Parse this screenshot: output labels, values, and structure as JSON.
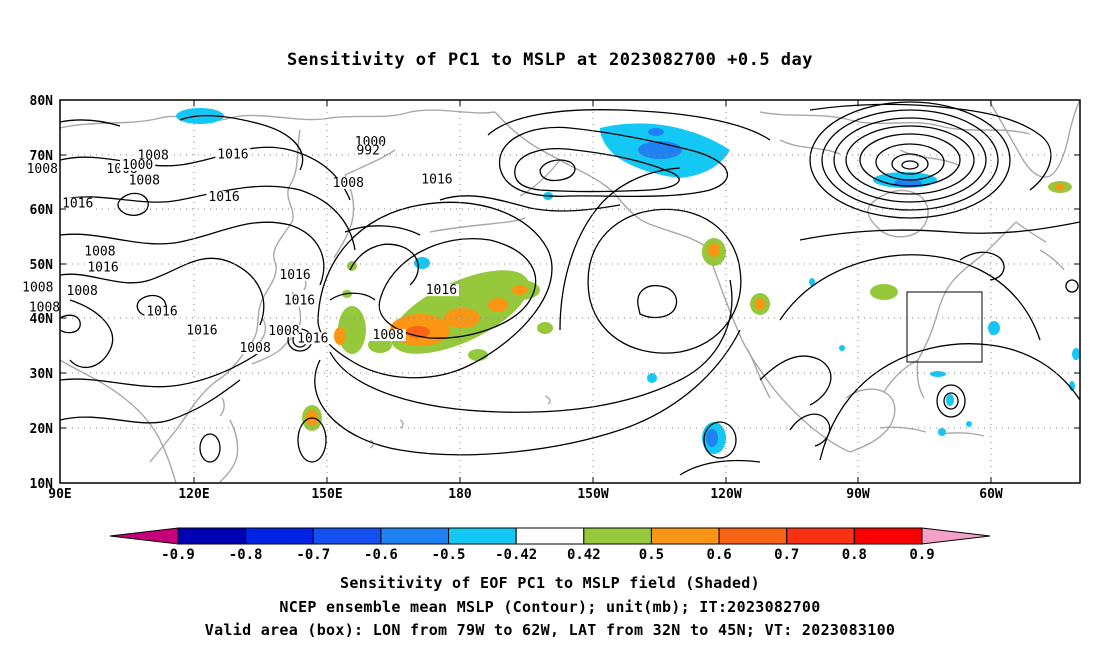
{
  "title": "Sensitivity of PC1 to MSLP at 2023082700 +0.5 day",
  "map": {
    "lat_labels": [
      "80N",
      "70N",
      "60N",
      "50N",
      "40N",
      "30N",
      "20N",
      "10N"
    ],
    "lon_labels": [
      "90E",
      "120E",
      "150E",
      "180",
      "150W",
      "120W",
      "90W",
      "60W"
    ],
    "contour_labels": [
      {
        "text": "1016",
        "lon": 129,
        "lat": 69.5,
        "fs": 13
      },
      {
        "text": "1008",
        "lon": 86,
        "lat": 66.8,
        "fs": 13
      },
      {
        "text": "1008",
        "lon": 104,
        "lat": 66.8,
        "fs": 13
      },
      {
        "text": "1016",
        "lon": 94,
        "lat": 60.5,
        "fs": 13
      },
      {
        "text": "1008",
        "lon": 111,
        "lat": 69.3,
        "fs": 13
      },
      {
        "text": "1000",
        "lon": 107.5,
        "lat": 67.6,
        "fs": 13
      },
      {
        "text": "1008",
        "lon": 109,
        "lat": 64.7,
        "fs": 13
      },
      {
        "text": "1016",
        "lon": 127,
        "lat": 61.7,
        "fs": 13
      },
      {
        "text": "1000",
        "lon": 160,
        "lat": 71.8,
        "fs": 13
      },
      {
        "text": "992",
        "lon": 159.5,
        "lat": 70.2,
        "fs": 13
      },
      {
        "text": "1008",
        "lon": 155,
        "lat": 64.3,
        "fs": 13
      },
      {
        "text": "1016",
        "lon": 175,
        "lat": 64.9,
        "fs": 13
      },
      {
        "text": "1008",
        "lon": 99,
        "lat": 51.8,
        "fs": 13
      },
      {
        "text": "1016",
        "lon": 99.7,
        "lat": 48.8,
        "fs": 13
      },
      {
        "text": "1008",
        "lon": 85,
        "lat": 45.2,
        "fs": 13
      },
      {
        "text": "1008",
        "lon": 95,
        "lat": 44.5,
        "fs": 13
      },
      {
        "text": "1008",
        "lon": 86.5,
        "lat": 41.5,
        "fs": 13
      },
      {
        "text": "1016",
        "lon": 113,
        "lat": 40.8,
        "fs": 13
      },
      {
        "text": "1016",
        "lon": 143,
        "lat": 47.5,
        "fs": 13
      },
      {
        "text": "1016",
        "lon": 144,
        "lat": 42.8,
        "fs": 13
      },
      {
        "text": "1016",
        "lon": 176,
        "lat": 44.7,
        "fs": 13
      },
      {
        "text": "1016",
        "lon": 122,
        "lat": 37.3,
        "fs": 13
      },
      {
        "text": "1008",
        "lon": 140.5,
        "lat": 37.2,
        "fs": 13
      },
      {
        "text": "1016",
        "lon": 147,
        "lat": 35.9,
        "fs": 13
      },
      {
        "text": "1008",
        "lon": 164,
        "lat": 36.5,
        "fs": 13
      },
      {
        "text": "1008",
        "lon": 134,
        "lat": 34.1,
        "fs": 13
      }
    ],
    "valid_box": {
      "lon_from": "79W",
      "lon_to": "62W",
      "lat_from": "32N",
      "lat_to": "45N"
    }
  },
  "colorbar": {
    "tick_labels": [
      "-0.9",
      "-0.8",
      "-0.7",
      "-0.6",
      "-0.5",
      "-0.42",
      "0.42",
      "0.5",
      "0.6",
      "0.7",
      "0.8",
      "0.9"
    ],
    "colors": [
      "#c6007a",
      "#0000b4",
      "#0024e6",
      "#1450f0",
      "#1e82f5",
      "#14c8f5",
      "#ffffff",
      "#96c83c",
      "#fa9614",
      "#fa6414",
      "#fa3214",
      "#fa0000",
      "#f5a0c8"
    ]
  },
  "captions": {
    "line1": "Sensitivity of EOF PC1 to MSLP field (Shaded)",
    "line2": "NCEP ensemble mean MSLP (Contour); unit(mb); IT:2023082700",
    "line3": "Valid area (box): LON from 79W to 62W, LAT from 32N to 45N; VT: 2023083100"
  }
}
